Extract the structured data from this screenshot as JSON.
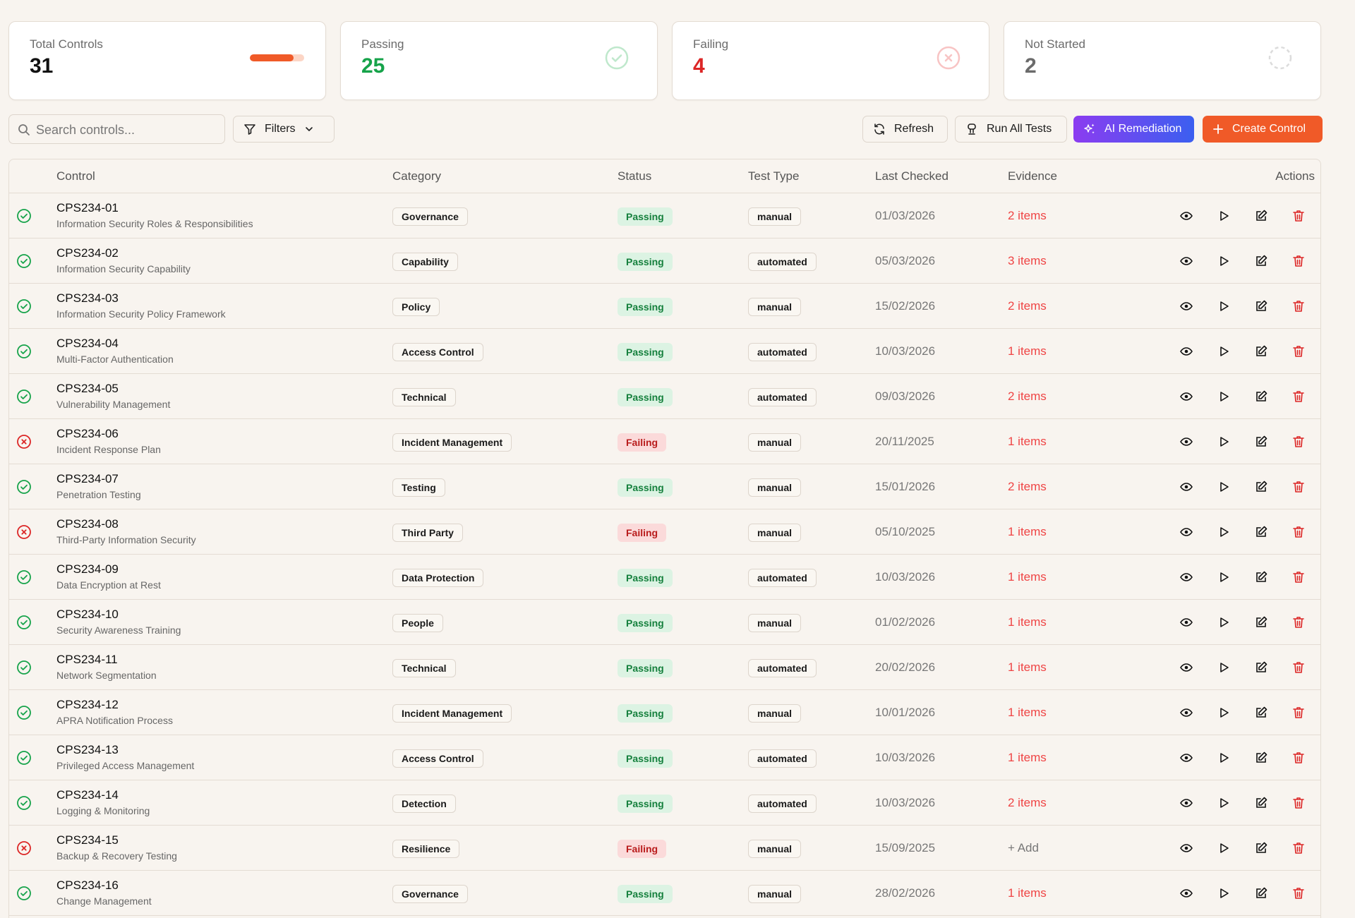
{
  "stats": {
    "total": {
      "label": "Total Controls",
      "value": "31",
      "progress": 0.81
    },
    "passing": {
      "label": "Passing",
      "value": "25"
    },
    "failing": {
      "label": "Failing",
      "value": "4"
    },
    "not_started": {
      "label": "Not Started",
      "value": "2"
    }
  },
  "toolbar": {
    "search_placeholder": "Search controls...",
    "filters_label": "Filters",
    "refresh_label": "Refresh",
    "run_all_label": "Run All Tests",
    "ai_label": "AI Remediation",
    "create_label": "Create Control"
  },
  "table": {
    "headers": {
      "control": "Control",
      "category": "Category",
      "status": "Status",
      "test_type": "Test Type",
      "last_checked": "Last Checked",
      "evidence": "Evidence",
      "actions": "Actions"
    },
    "rows": [
      {
        "id": "CPS234-01",
        "name": "Information Security Roles & Responsibilities",
        "category": "Governance",
        "status": "Passing",
        "test_type": "manual",
        "last_checked": "01/03/2026",
        "evidence": "2 items"
      },
      {
        "id": "CPS234-02",
        "name": "Information Security Capability",
        "category": "Capability",
        "status": "Passing",
        "test_type": "automated",
        "last_checked": "05/03/2026",
        "evidence": "3 items"
      },
      {
        "id": "CPS234-03",
        "name": "Information Security Policy Framework",
        "category": "Policy",
        "status": "Passing",
        "test_type": "manual",
        "last_checked": "15/02/2026",
        "evidence": "2 items"
      },
      {
        "id": "CPS234-04",
        "name": "Multi-Factor Authentication",
        "category": "Access Control",
        "status": "Passing",
        "test_type": "automated",
        "last_checked": "10/03/2026",
        "evidence": "1 items"
      },
      {
        "id": "CPS234-05",
        "name": "Vulnerability Management",
        "category": "Technical",
        "status": "Passing",
        "test_type": "automated",
        "last_checked": "09/03/2026",
        "evidence": "2 items"
      },
      {
        "id": "CPS234-06",
        "name": "Incident Response Plan",
        "category": "Incident Management",
        "status": "Failing",
        "test_type": "manual",
        "last_checked": "20/11/2025",
        "evidence": "1 items"
      },
      {
        "id": "CPS234-07",
        "name": "Penetration Testing",
        "category": "Testing",
        "status": "Passing",
        "test_type": "manual",
        "last_checked": "15/01/2026",
        "evidence": "2 items"
      },
      {
        "id": "CPS234-08",
        "name": "Third-Party Information Security",
        "category": "Third Party",
        "status": "Failing",
        "test_type": "manual",
        "last_checked": "05/10/2025",
        "evidence": "1 items"
      },
      {
        "id": "CPS234-09",
        "name": "Data Encryption at Rest",
        "category": "Data Protection",
        "status": "Passing",
        "test_type": "automated",
        "last_checked": "10/03/2026",
        "evidence": "1 items"
      },
      {
        "id": "CPS234-10",
        "name": "Security Awareness Training",
        "category": "People",
        "status": "Passing",
        "test_type": "manual",
        "last_checked": "01/02/2026",
        "evidence": "1 items"
      },
      {
        "id": "CPS234-11",
        "name": "Network Segmentation",
        "category": "Technical",
        "status": "Passing",
        "test_type": "automated",
        "last_checked": "20/02/2026",
        "evidence": "1 items"
      },
      {
        "id": "CPS234-12",
        "name": "APRA Notification Process",
        "category": "Incident Management",
        "status": "Passing",
        "test_type": "manual",
        "last_checked": "10/01/2026",
        "evidence": "1 items"
      },
      {
        "id": "CPS234-13",
        "name": "Privileged Access Management",
        "category": "Access Control",
        "status": "Passing",
        "test_type": "automated",
        "last_checked": "10/03/2026",
        "evidence": "1 items"
      },
      {
        "id": "CPS234-14",
        "name": "Logging & Monitoring",
        "category": "Detection",
        "status": "Passing",
        "test_type": "automated",
        "last_checked": "10/03/2026",
        "evidence": "2 items"
      },
      {
        "id": "CPS234-15",
        "name": "Backup & Recovery Testing",
        "category": "Resilience",
        "status": "Failing",
        "test_type": "manual",
        "last_checked": "15/09/2025",
        "evidence": "+ Add"
      },
      {
        "id": "CPS234-16",
        "name": "Change Management",
        "category": "Governance",
        "status": "Passing",
        "test_type": "manual",
        "last_checked": "28/02/2026",
        "evidence": "1 items"
      },
      {
        "id": "",
        "name": "",
        "category": "",
        "status": "",
        "test_type": "",
        "last_checked": "",
        "evidence": ""
      }
    ]
  },
  "colors": {
    "accent": "#f05a28",
    "passing": "#16a34a",
    "failing": "#dc2626",
    "ai_gradient_start": "#8b3cf0",
    "ai_gradient_end": "#3b5ff0",
    "background": "#f8f4ef"
  },
  "icons": {
    "passing": "check-circle-icon",
    "failing": "x-circle-icon",
    "not_started": "dashed-circle-icon",
    "actions": [
      "eye-icon",
      "play-icon",
      "edit-icon",
      "trash-icon"
    ]
  }
}
